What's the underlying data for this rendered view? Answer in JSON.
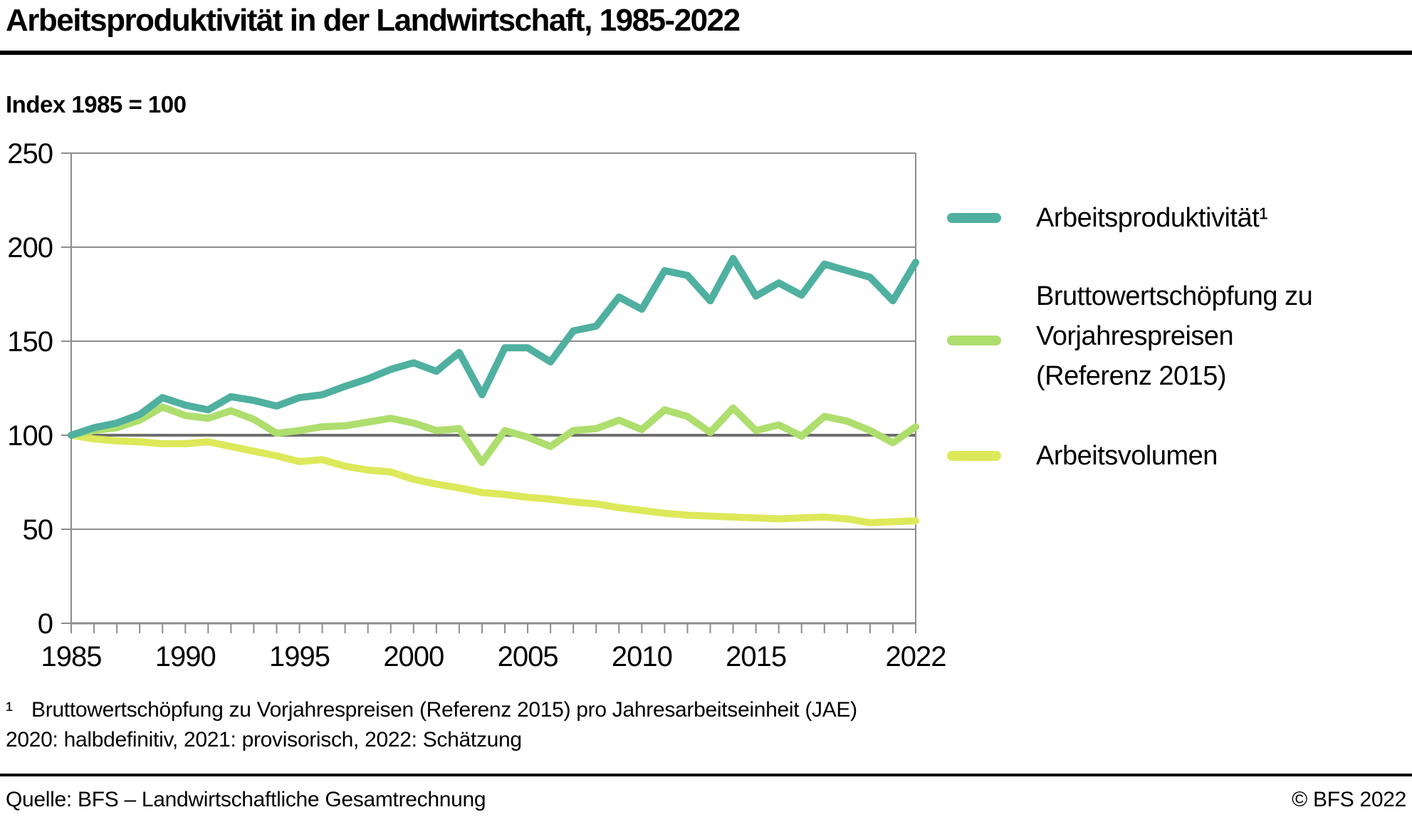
{
  "page": {
    "title": "Arbeitsproduktivität in der Landwirtschaft, 1985-2022",
    "unit_label": "Index 1985 = 100",
    "footnote_marker": "¹",
    "footnote_line1": "Bruttowertschöpfung zu Vorjahrespreisen (Referenz 2015) pro Jahresarbeitseinheit (JAE)",
    "footnote_line2": "2020: halbdefinitiv, 2021: provisorisch, 2022: Schätzung",
    "source": "Quelle: BFS – Landwirtschaftliche Gesamtrechnung",
    "copyright": "© BFS 2022"
  },
  "legend": {
    "items": [
      {
        "label": "Arbeitsproduktivität¹"
      },
      {
        "label_lines": [
          "Bruttowertschöpfung zu",
          "Vorjahrespreisen",
          "(Referenz 2015)"
        ]
      },
      {
        "label": "Arbeitsvolumen"
      }
    ]
  },
  "chart_data": {
    "type": "line",
    "title": "Arbeitsproduktivität in der Landwirtschaft, 1985-2022",
    "unit_label": "Index 1985 = 100",
    "x": [
      1985,
      1986,
      1987,
      1988,
      1989,
      1990,
      1991,
      1992,
      1993,
      1994,
      1995,
      1996,
      1997,
      1998,
      1999,
      2000,
      2001,
      2002,
      2003,
      2004,
      2005,
      2006,
      2007,
      2008,
      2009,
      2010,
      2011,
      2012,
      2013,
      2014,
      2015,
      2016,
      2017,
      2018,
      2019,
      2020,
      2021,
      2022
    ],
    "series": [
      {
        "name": "Arbeitsproduktivität¹",
        "color": "#4fb0a0",
        "values": [
          100,
          104,
          106.5,
          111,
          120,
          116,
          113.5,
          120.5,
          118.5,
          115.5,
          120,
          121.5,
          126,
          130,
          135,
          138.5,
          134,
          144,
          121.5,
          146.5,
          146.5,
          139,
          155.5,
          158,
          173.5,
          167,
          187.5,
          185,
          171.5,
          194,
          174,
          181,
          174.5,
          191,
          187.5,
          184,
          171.5,
          192
        ]
      },
      {
        "name": "Bruttowertschöpfung zu Vorjahrespreisen (Referenz 2015)",
        "color": "#aede6e",
        "values": [
          100,
          102.5,
          104,
          108,
          115,
          110.5,
          109,
          113,
          108.5,
          101,
          102.5,
          104.5,
          105,
          107,
          109,
          106.5,
          102.5,
          103.5,
          85.5,
          102.5,
          99,
          94,
          102.5,
          103.5,
          108,
          103,
          113.5,
          110,
          101.5,
          114.5,
          102.5,
          105.5,
          99.5,
          110,
          107.5,
          102.5,
          96,
          104.5
        ]
      },
      {
        "name": "Arbeitsvolumen",
        "color": "#dde95a",
        "values": [
          100,
          98,
          97,
          96.5,
          95.5,
          95.5,
          96.5,
          94,
          91.5,
          89,
          86,
          87,
          83.5,
          81.5,
          80.5,
          76.5,
          74,
          72,
          69.5,
          68.5,
          67,
          66,
          64.5,
          63.5,
          61.5,
          60,
          58.5,
          57.5,
          57,
          56.5,
          56,
          55.5,
          56,
          56.5,
          55.5,
          53.5,
          54,
          54.5
        ]
      }
    ],
    "ylim": [
      0,
      250
    ],
    "yticks": [
      0,
      50,
      100,
      150,
      200,
      250
    ],
    "xtick_labels": [
      1985,
      1990,
      1995,
      2000,
      2005,
      2010,
      2015,
      2022
    ],
    "minor_xticks_every_year": true,
    "reference_line": 100,
    "grid": true,
    "legend_position": "right",
    "axis_color": "#8d8d8d",
    "reference_line_color": "#6e6e6e"
  }
}
